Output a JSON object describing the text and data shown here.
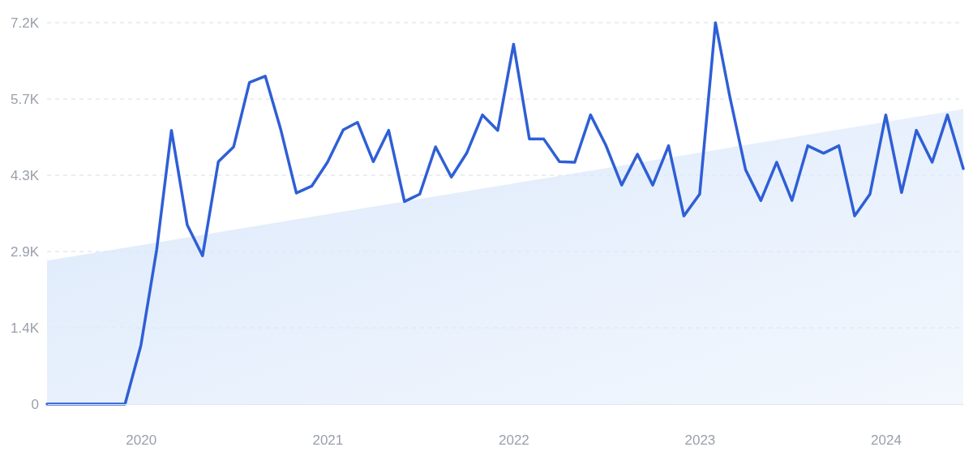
{
  "chart_data": {
    "type": "line",
    "x": [
      "2019-07",
      "2019-08",
      "2019-09",
      "2019-10",
      "2019-11",
      "2019-12",
      "2020-01",
      "2020-02",
      "2020-03",
      "2020-04",
      "2020-05",
      "2020-06",
      "2020-07",
      "2020-08",
      "2020-09",
      "2020-10",
      "2020-11",
      "2020-12",
      "2021-01",
      "2021-02",
      "2021-03",
      "2021-04",
      "2021-05",
      "2021-06",
      "2021-07",
      "2021-08",
      "2021-09",
      "2021-10",
      "2021-11",
      "2021-12",
      "2022-01",
      "2022-02",
      "2022-03",
      "2022-04",
      "2022-05",
      "2022-06",
      "2022-07",
      "2022-08",
      "2022-09",
      "2022-10",
      "2022-11",
      "2022-12",
      "2023-01",
      "2023-02",
      "2023-03",
      "2023-04",
      "2023-05",
      "2023-06",
      "2023-07",
      "2023-08",
      "2023-09",
      "2023-10",
      "2023-11",
      "2023-12",
      "2024-01",
      "2024-02",
      "2024-03",
      "2024-04",
      "2024-05",
      "2024-06"
    ],
    "series": [
      {
        "type": "area",
        "color": "#dce9fb",
        "x": [
          "2019-07",
          "2024-06"
        ],
        "values": [
          2700,
          5550
        ]
      },
      {
        "color": "#2f5fd6",
        "values": [
          0,
          0,
          0,
          0,
          0,
          0,
          1100,
          2900,
          5150,
          3370,
          2790,
          4560,
          4840,
          6050,
          6170,
          5180,
          3970,
          4100,
          4550,
          5160,
          5300,
          4560,
          5150,
          3810,
          3950,
          4840,
          4270,
          4720,
          5440,
          5150,
          6770,
          4990,
          4990,
          4560,
          4550,
          5440,
          4870,
          4120,
          4700,
          4120,
          4860,
          3540,
          3950,
          7175,
          5790,
          4410,
          3830,
          4550,
          3830,
          4860,
          4720,
          4860,
          3540,
          3950,
          5440,
          3980,
          5150,
          4550,
          5440,
          4430
        ]
      }
    ],
    "xlim": [
      "2019-07",
      "2024-06"
    ],
    "xticks": [
      {
        "value": "2020-01",
        "label": "2020"
      },
      {
        "value": "2021-01",
        "label": "2021"
      },
      {
        "value": "2022-01",
        "label": "2022"
      },
      {
        "value": "2023-01",
        "label": "2023"
      },
      {
        "value": "2024-01",
        "label": "2024"
      }
    ],
    "ylim": [
      0,
      7175
    ],
    "yticks": [
      0,
      {
        "value": 1435,
        "label": "1.4K"
      },
      {
        "value": 2870,
        "label": "2.9K"
      },
      {
        "value": 4305,
        "label": "4.3K"
      },
      {
        "value": 5740,
        "label": "5.7K"
      },
      {
        "value": 7175,
        "label": "7.2K"
      }
    ],
    "grid": "y",
    "marker": "none"
  }
}
